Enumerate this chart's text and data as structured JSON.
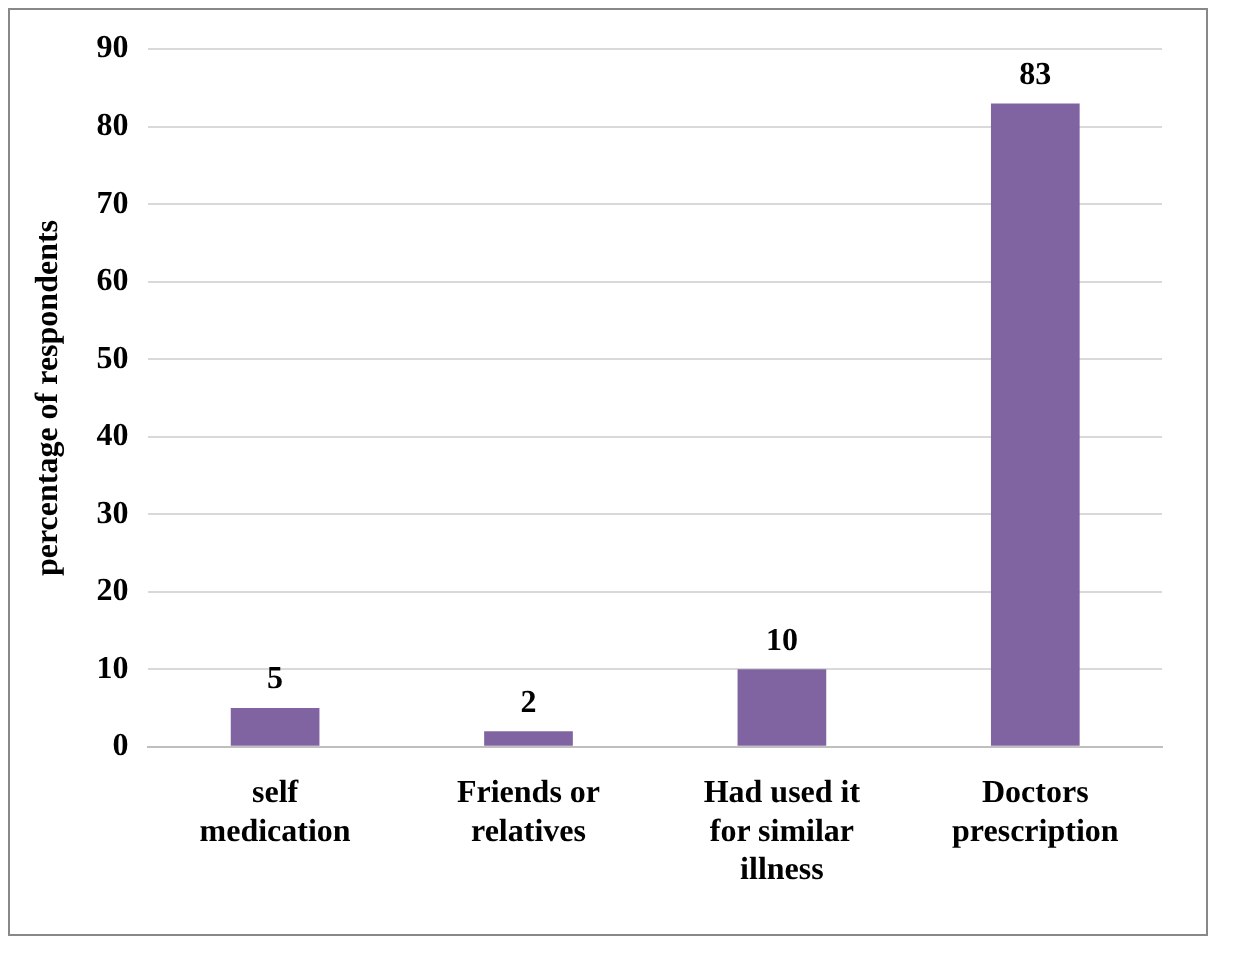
{
  "chart_data": {
    "type": "bar",
    "ylabel": "percentage of respondents",
    "categories": [
      "self medication",
      "Friends or relatives",
      "Had used it for similar illness",
      "Doctors prescription"
    ],
    "values": [
      5,
      2,
      10,
      83
    ],
    "color": "#8064a2",
    "ylim": [
      0,
      90
    ],
    "yticks": [
      0,
      10,
      20,
      30,
      40,
      50,
      60,
      70,
      80,
      90
    ],
    "grid": "y",
    "data_labels": true
  }
}
